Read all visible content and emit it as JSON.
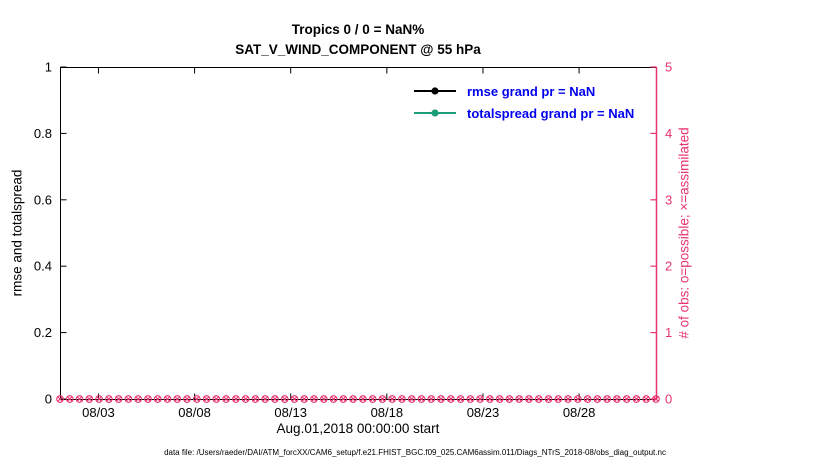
{
  "figure": {
    "footer": "data file: /Users/raeder/DAI/ATM_forcXX/CAM6_setup/f.e21.FHIST_BGC.f09_025.CAM6assim.011/Diags_NTrS_2018-08/obs_diag_output.nc"
  },
  "chart_data": {
    "type": "line",
    "title": "Tropics 0 / 0 = NaN%",
    "subtitle": "SAT_V_WIND_COMPONENT @ 55 hPa",
    "xlabel": "Aug.01,2018 00:00:00 start",
    "ylabel_left": "rmse and totalspread",
    "ylabel_right": "# of obs: o=possible; ×=assimilated",
    "ylim_left": [
      0,
      1
    ],
    "yticks_left": [
      "0",
      "0.2",
      "0.4",
      "0.6",
      "0.8",
      "1"
    ],
    "ylim_right": [
      0,
      5
    ],
    "yticks_right": [
      "0",
      "1",
      "2",
      "3",
      "4",
      "5"
    ],
    "x_range_days": [
      1,
      32
    ],
    "xticks": [
      {
        "label": "08/03",
        "day": 3
      },
      {
        "label": "08/08",
        "day": 8
      },
      {
        "label": "08/13",
        "day": 13
      },
      {
        "label": "08/18",
        "day": 18
      },
      {
        "label": "08/23",
        "day": 23
      },
      {
        "label": "08/28",
        "day": 28
      }
    ],
    "series": [
      {
        "name": "rmse grand pr = NaN",
        "color": "#000000",
        "values": [],
        "note": "all values NaN - no curve plotted"
      },
      {
        "name": "totalspread grand pr = NaN",
        "color": "#1b9e77",
        "values": [],
        "note": "all values NaN - no curve plotted"
      }
    ],
    "obs_markers": {
      "value_right_axis": 0,
      "count": 62,
      "color": "#e8336e",
      "symbols": [
        "o",
        "x"
      ],
      "note": "row of overlapping o and x markers along the x-axis at # of obs = 0"
    },
    "axis_colors": {
      "left": "#000000",
      "right": "#e8336e"
    },
    "legend_text_color": "#0000ee",
    "grid": false,
    "legend_position": "inside upper right area"
  }
}
